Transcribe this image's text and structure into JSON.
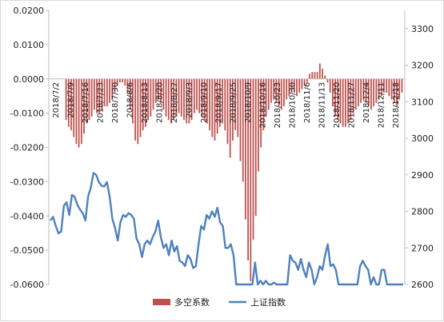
{
  "chart_data": {
    "type": "bar+line",
    "left_axis": {
      "ticks": [
        "0.0200",
        "0.0100",
        "0.0000",
        "-0.0100",
        "-0.0200",
        "-0.0300",
        "-0.0400",
        "-0.0500",
        "-0.0600"
      ],
      "ylim": [
        -0.06,
        0.02
      ]
    },
    "right_axis": {
      "ticks": [
        "3300",
        "3200",
        "3100",
        "3000",
        "2900",
        "2800",
        "2700",
        "2600"
      ],
      "ylim": [
        2600,
        3350
      ]
    },
    "x_tick_labels": [
      "2018/7/2",
      "2018/7/9",
      "2018/7/16",
      "2018/7/23",
      "2018/7/30",
      "2018/8/6",
      "2018/8/13",
      "2018/8/20",
      "2018/8/27",
      "2018/9/3",
      "2018/9/10",
      "2018/9/17",
      "2018/9/25",
      "2018/10/9",
      "2018/10/16",
      "2018/10/23",
      "2018/10/30",
      "2018/11/6",
      "2018/11/13",
      "2018/11/20",
      "2018/11/27",
      "2018/12/4",
      "2018/12/11",
      "2018/12/18"
    ],
    "legend": [
      {
        "name": "多空系数",
        "color": "#c0504d",
        "kind": "bar"
      },
      {
        "name": "上证指数",
        "color": "#4f81bd",
        "kind": "line"
      }
    ],
    "series": [
      {
        "name": "多空系数",
        "axis": "left",
        "values": [
          -0.012,
          -0.014,
          -0.015,
          -0.017,
          -0.019,
          -0.02,
          -0.019,
          -0.016,
          -0.013,
          -0.012,
          -0.011,
          -0.009,
          -0.01,
          -0.01,
          -0.009,
          -0.008,
          -0.008,
          -0.007,
          -0.006,
          -0.004,
          -0.002,
          -0.001,
          -0.001,
          -0.002,
          -0.004,
          -0.009,
          -0.013,
          -0.018,
          -0.019,
          -0.017,
          -0.015,
          -0.014,
          -0.012,
          -0.011,
          -0.009,
          -0.007,
          -0.006,
          -0.007,
          -0.009,
          -0.011,
          -0.012,
          -0.013,
          -0.012,
          -0.011,
          -0.01,
          -0.011,
          -0.012,
          -0.013,
          -0.013,
          -0.012,
          -0.01,
          -0.009,
          -0.01,
          -0.011,
          -0.012,
          -0.013,
          -0.015,
          -0.017,
          -0.018,
          -0.016,
          -0.014,
          -0.013,
          -0.015,
          -0.019,
          -0.023,
          -0.018,
          -0.015,
          -0.017,
          -0.024,
          -0.03,
          -0.041,
          -0.053,
          -0.059,
          -0.047,
          -0.04,
          -0.027,
          -0.02,
          -0.015,
          -0.011,
          -0.009,
          -0.007,
          -0.006,
          -0.007,
          -0.008,
          -0.009,
          -0.008,
          -0.006,
          -0.005,
          -0.004,
          -0.004,
          -0.005,
          -0.004,
          -0.003,
          -0.002,
          -0.001,
          0.0015,
          0.002,
          0.002,
          0.002,
          0.0045,
          0.003,
          0.001,
          -0.001,
          -0.004,
          -0.008,
          -0.011,
          -0.012,
          -0.013,
          -0.014,
          -0.014,
          -0.013,
          -0.012,
          -0.01,
          -0.009,
          -0.008,
          -0.007,
          -0.006,
          -0.007,
          -0.008,
          -0.009,
          -0.008,
          -0.007,
          -0.006,
          -0.005,
          -0.004,
          -0.004,
          -0.005,
          -0.006,
          -0.007,
          -0.008,
          -0.006,
          -0.004
        ]
      },
      {
        "name": "上证指数",
        "axis": "right",
        "values": [
          2775,
          2785,
          2760,
          2740,
          2745,
          2815,
          2825,
          2790,
          2845,
          2840,
          2818,
          2805,
          2795,
          2775,
          2840,
          2865,
          2905,
          2900,
          2880,
          2870,
          2868,
          2880,
          2840,
          2780,
          2755,
          2720,
          2770,
          2790,
          2785,
          2795,
          2790,
          2780,
          2725,
          2710,
          2675,
          2710,
          2720,
          2710,
          2730,
          2745,
          2775,
          2730,
          2700,
          2710,
          2680,
          2720,
          2690,
          2705,
          2665,
          2660,
          2650,
          2680,
          2670,
          2645,
          2650,
          2710,
          2760,
          2750,
          2790,
          2780,
          2800,
          2785,
          2810,
          2770,
          2760,
          2700,
          2700,
          2710,
          2680,
          2600,
          2595,
          2600,
          2590,
          2600,
          2580,
          2590,
          2660,
          2600,
          2610,
          2600,
          2610,
          2595,
          2600,
          2605,
          2580,
          2600,
          2590,
          2600,
          2590,
          2680,
          2665,
          2660,
          2640,
          2670,
          2640,
          2620,
          2660,
          2640,
          2600,
          2620,
          2650,
          2640,
          2680,
          2710,
          2650,
          2655,
          2640,
          2580,
          2590,
          2600,
          2575,
          2600,
          2585,
          2590,
          2600,
          2650,
          2665,
          2650,
          2640,
          2600,
          2620,
          2600,
          2600,
          2640,
          2640,
          2590,
          2600,
          2600,
          2600,
          2600,
          2600,
          2600
        ]
      }
    ]
  }
}
